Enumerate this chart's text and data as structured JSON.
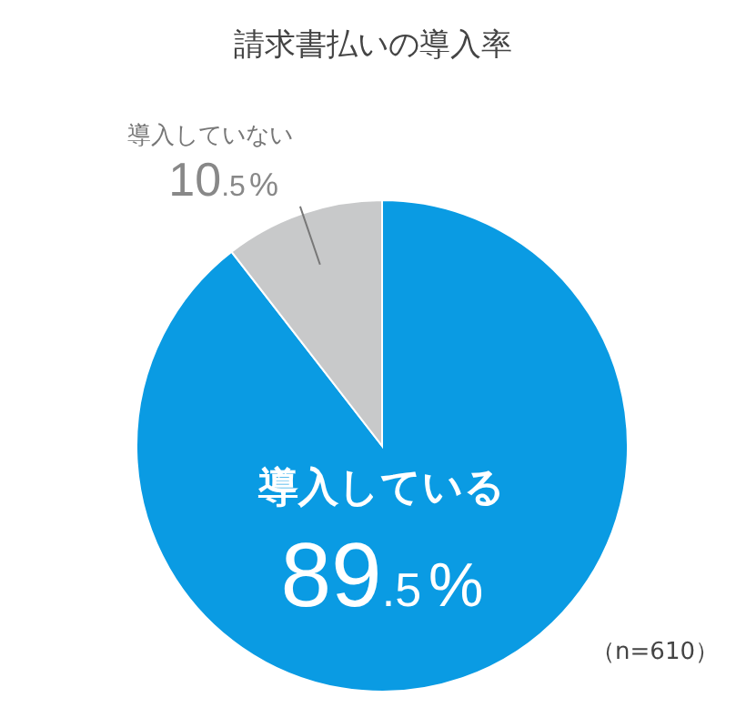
{
  "chart_data": {
    "type": "pie",
    "title": "請求書払いの導入率",
    "categories": [
      "導入している",
      "導入していない"
    ],
    "values": [
      89.5,
      10.5
    ],
    "colors": [
      "#0a9be3",
      "#c8c9ca"
    ],
    "value_labels": [
      "89.5%",
      "10.5%"
    ],
    "annotations": [
      "（n=610）"
    ],
    "legend": false
  }
}
